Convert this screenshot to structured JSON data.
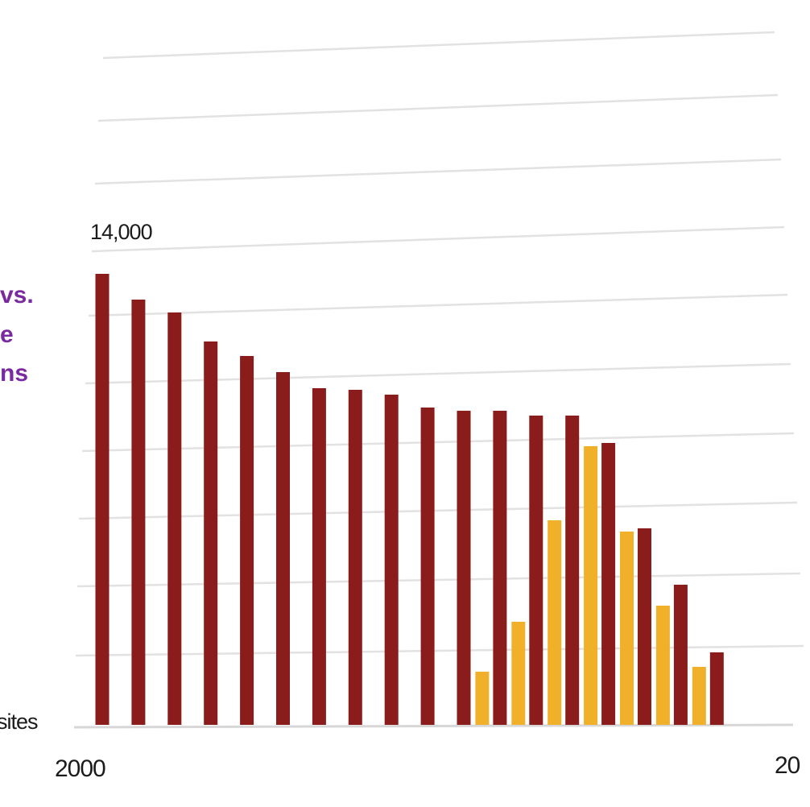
{
  "chart_data": {
    "type": "bar",
    "x_start_label": "2000",
    "x_end_label": "20",
    "y_max_label": "14,000",
    "ylim": [
      0,
      16000
    ],
    "left_labels": [
      "vs.",
      "e",
      "ns"
    ],
    "legend_fragment": "sites",
    "colors": {
      "series_1": "#8b1c1c",
      "series_2": "#f0b02a"
    },
    "series": [
      {
        "values": [
          14000,
          13200,
          12800,
          11900,
          11450,
          10950,
          10450,
          10400,
          10250,
          9850,
          9750,
          9750,
          9600,
          9600,
          8750,
          6100,
          4350,
          2250
        ]
      },
      {
        "values": [
          null,
          null,
          null,
          null,
          null,
          null,
          null,
          null,
          null,
          null,
          null,
          1650,
          3200,
          6350,
          8650,
          6000,
          3700,
          1800
        ]
      }
    ]
  }
}
